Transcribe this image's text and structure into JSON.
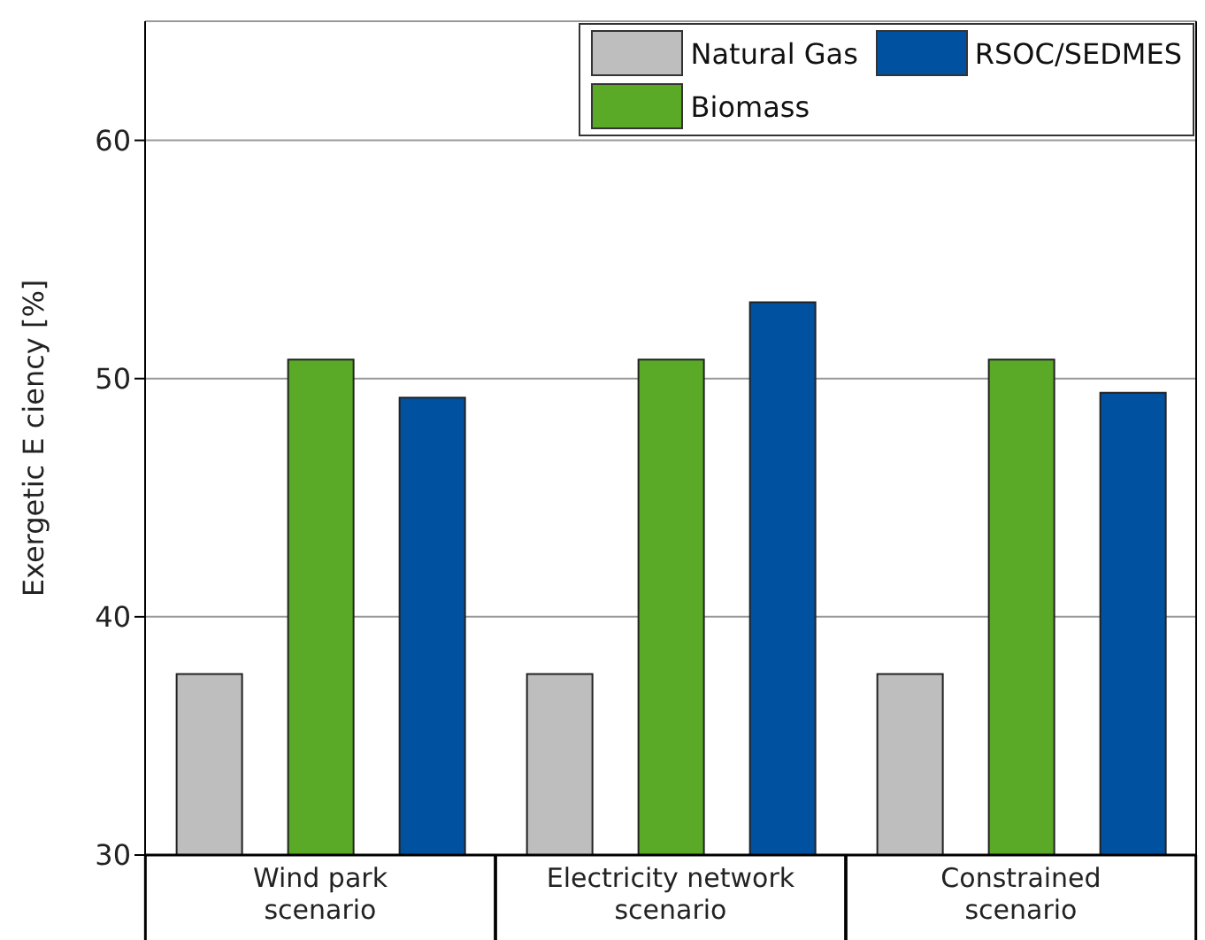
{
  "chart_data": {
    "type": "bar",
    "ylabel": "Exergetic E ciency [%]",
    "categories": [
      "Wind park scenario",
      "Electricity network scenario",
      "Constrained scenario"
    ],
    "series": [
      {
        "name": "Natural Gas",
        "color": "#bebebe",
        "values": [
          37.6,
          37.6,
          37.6
        ]
      },
      {
        "name": "Biomass",
        "color": "#5aaa28",
        "values": [
          50.8,
          50.8,
          50.8
        ]
      },
      {
        "name": "RSOC/SEDMES",
        "color": "#0052a0",
        "values": [
          49.2,
          53.2,
          49.4
        ]
      }
    ],
    "ylim": [
      30,
      65
    ],
    "yticks": [
      30,
      40,
      50,
      60
    ],
    "grid": "y",
    "legend": "top right"
  }
}
